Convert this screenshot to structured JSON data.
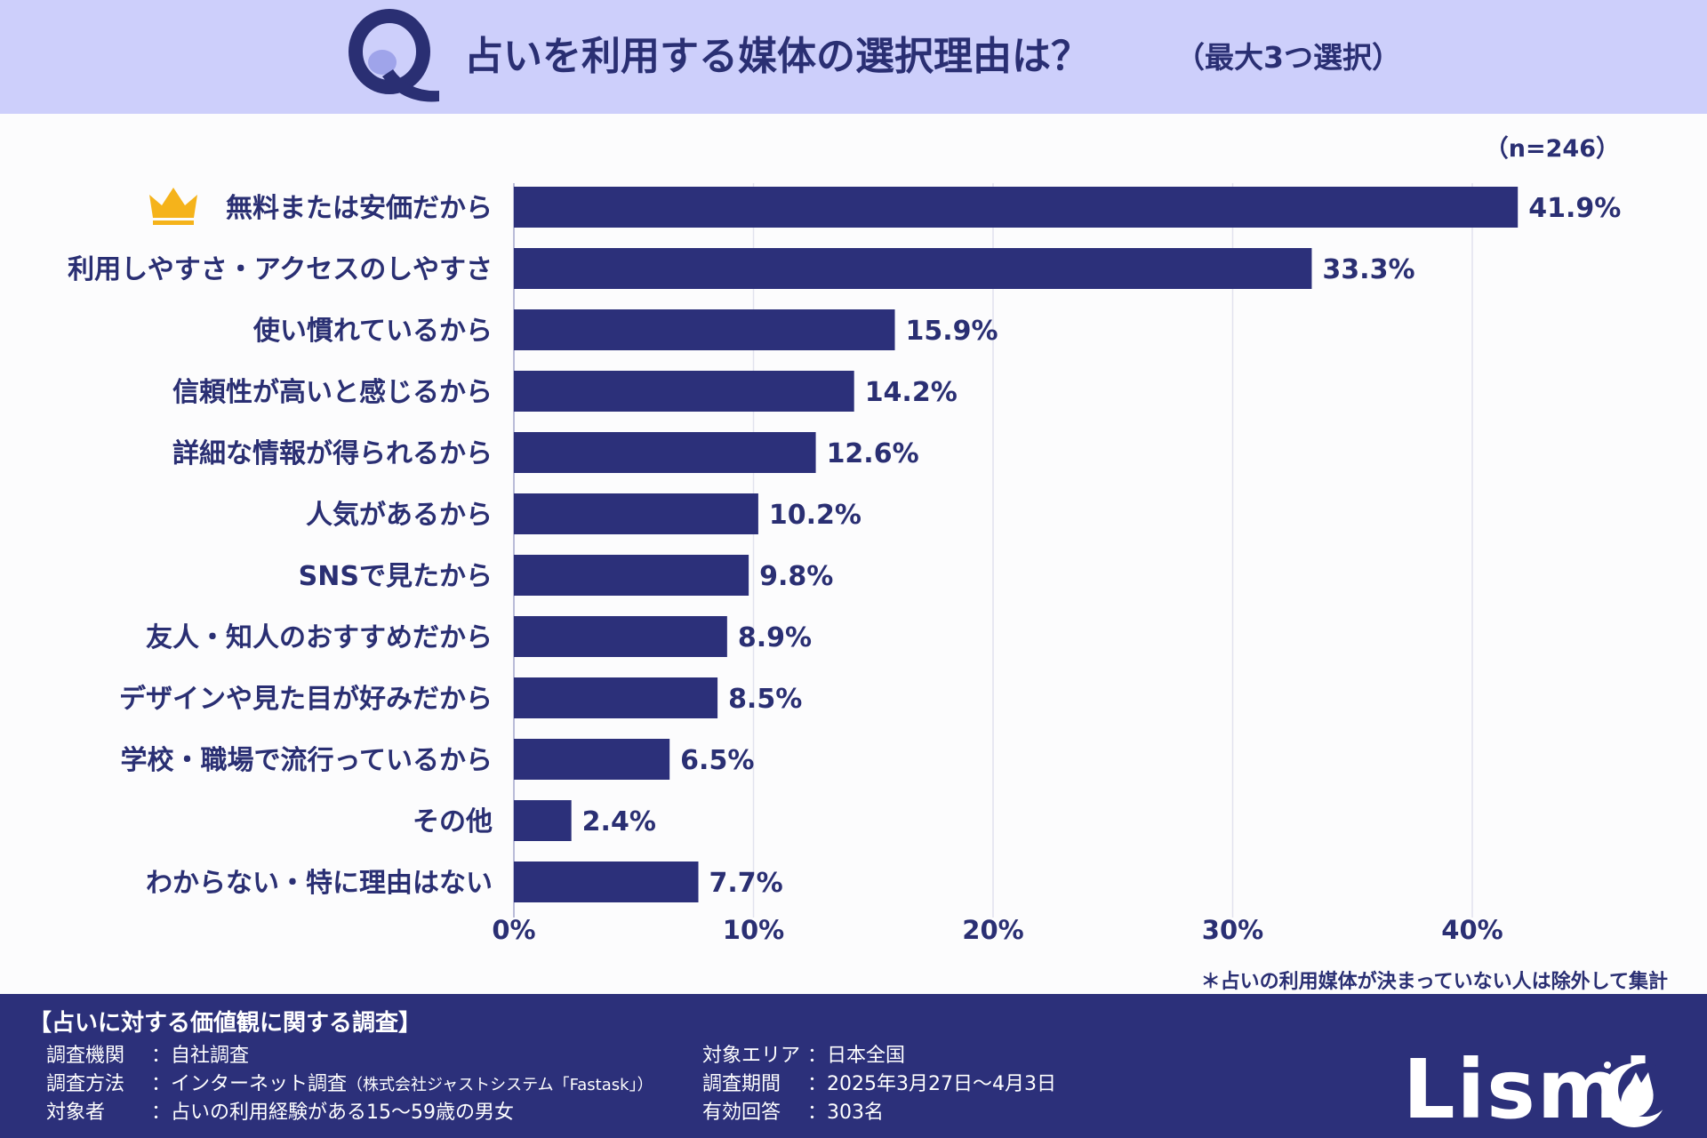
{
  "header": {
    "title": "占いを利用する媒体の選択理由は？",
    "subtitle": "（最大3つ選択）",
    "q_color": "#2a2f73"
  },
  "chart_data": {
    "type": "bar",
    "orientation": "horizontal",
    "title": "占いを利用する媒体の選択理由は？",
    "sample_size": "（n=246）",
    "categories": [
      "無料または安価だから",
      "利用しやすさ・アクセスのしやすさ",
      "使い慣れているから",
      "信頼性が高いと感じるから",
      "詳細な情報が得られるから",
      "人気があるから",
      "SNSで見たから",
      "友人・知人のおすすめだから",
      "デザインや見た目が好みだから",
      "学校・職場で流行っているから",
      "その他",
      "わからない・特に理由はない"
    ],
    "values": [
      41.9,
      33.3,
      15.9,
      14.2,
      12.6,
      10.2,
      9.8,
      8.9,
      8.5,
      6.5,
      2.4,
      7.7
    ],
    "value_labels": [
      "41.9%",
      "33.3%",
      "15.9%",
      "14.2%",
      "12.6%",
      "10.2%",
      "9.8%",
      "8.9%",
      "8.5%",
      "6.5%",
      "2.4%",
      "7.7%"
    ],
    "xticks": [
      "0%",
      "10%",
      "20%",
      "30%",
      "40%"
    ],
    "xtick_values": [
      0,
      10,
      20,
      30,
      40
    ],
    "xlim": [
      0,
      47
    ],
    "grid": true,
    "top_item_marker": "crown-icon",
    "bar_color": "#2c307a",
    "crown_color": "#f5b31b",
    "note": "＊占いの利用媒体が決まっていない人は除外して集計"
  },
  "footer": {
    "survey_title": "【占いに対する価値観に関する調査】",
    "left": [
      {
        "label": "調査機関",
        "value": "：自社調査",
        "note": ""
      },
      {
        "label": "調査方法",
        "value": "：インターネット調査",
        "note": "（株式会社ジャストシステム「Fastask」）"
      },
      {
        "label": "対象者",
        "value": "：占いの利用経験がある15～59歳の男女",
        "note": ""
      }
    ],
    "right": [
      {
        "label": "対象エリア",
        "value": "：日本全国"
      },
      {
        "label": "調査期間",
        "value": "：2025年3月27日～4月3日"
      },
      {
        "label": "有効回答",
        "value": "：303名"
      }
    ],
    "logo_text": "Lismi"
  }
}
